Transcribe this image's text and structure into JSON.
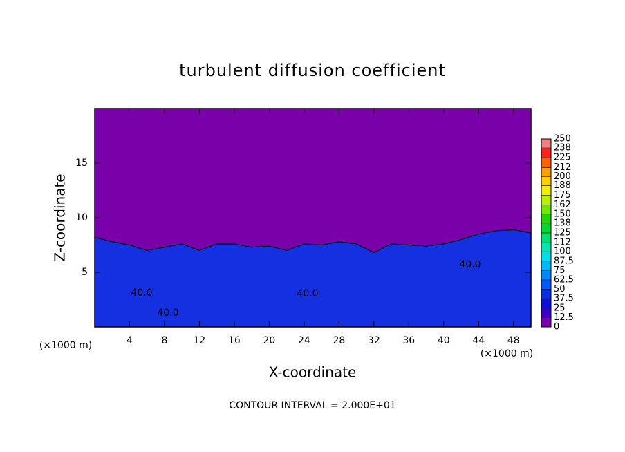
{
  "chart_data": {
    "type": "contour",
    "title": "turbulent diffusion coefficient",
    "xlabel": "X-coordinate",
    "ylabel": "Z-coordinate",
    "x_unit_labels": [
      "(×1000 m)",
      "(×1000 m)"
    ],
    "xlim": [
      0,
      50
    ],
    "ylim": [
      0,
      20
    ],
    "xticks": [
      4,
      8,
      12,
      16,
      20,
      24,
      28,
      32,
      36,
      40,
      44,
      48
    ],
    "yticks": [
      5,
      10,
      15
    ],
    "background_color": "#7a00aa",
    "layer_color": "#1530e0",
    "x": [
      0,
      2,
      4,
      6,
      8,
      10,
      12,
      14,
      16,
      18,
      20,
      22,
      24,
      26,
      28,
      30,
      32,
      34,
      36,
      38,
      40,
      42,
      44,
      46,
      48,
      50
    ],
    "values": [
      8.2,
      7.8,
      7.5,
      7.0,
      7.3,
      7.6,
      7.0,
      7.6,
      7.6,
      7.3,
      7.4,
      7.0,
      7.6,
      7.5,
      7.8,
      7.6,
      6.8,
      7.6,
      7.5,
      7.4,
      7.6,
      8.0,
      8.5,
      8.8,
      8.9,
      8.6
    ],
    "contour_labels": [
      {
        "value": 40,
        "label": "40.0"
      },
      {
        "value": 40,
        "label": "40.0"
      },
      {
        "value": 40,
        "label": "40.0"
      },
      {
        "value": 40,
        "label": "40.0"
      }
    ],
    "colorbar": {
      "lim": [
        0,
        250
      ],
      "ticks": [
        0,
        12.5,
        25,
        37.5,
        50,
        62.5,
        75,
        87.5,
        100,
        112,
        125,
        138,
        150,
        162,
        175,
        188,
        200,
        212,
        225,
        238,
        250
      ],
      "colors": [
        "#7a00aa",
        "#3a00c8",
        "#0a10d8",
        "#0030e8",
        "#0058ff",
        "#0088ff",
        "#00b8ff",
        "#00e0e8",
        "#00e8b0",
        "#00e070",
        "#00d830",
        "#20d800",
        "#70e800",
        "#b8f000",
        "#f0f000",
        "#ffd000",
        "#ffa000",
        "#ff6000",
        "#ff2020",
        "#f08080"
      ]
    },
    "footer": "CONTOUR INTERVAL = 2.000E+01"
  }
}
